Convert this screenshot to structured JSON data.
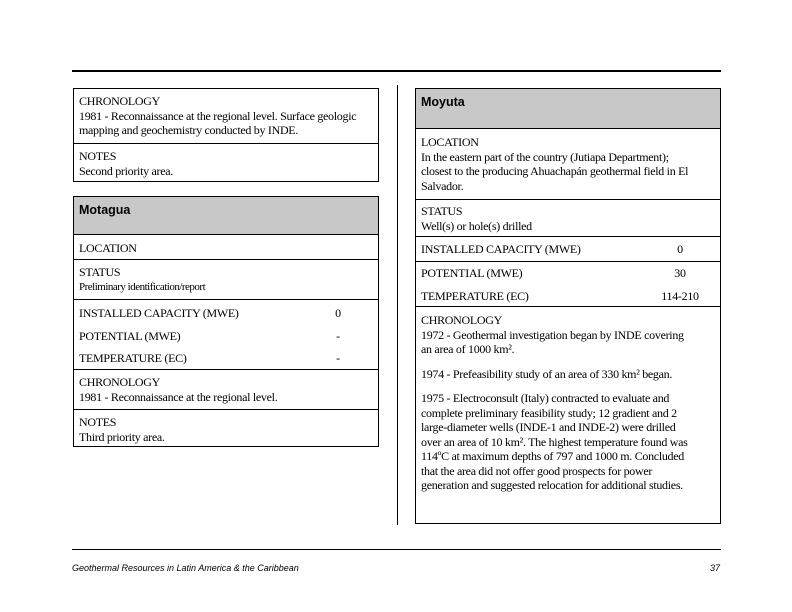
{
  "left": {
    "prev_entry": {
      "chronology_label": "CHRONOLOGY",
      "chronology_text": "1981 - Reconnaissance at the regional level.  Surface geologic mapping and geochemistry conducted by INDE.",
      "notes_label": "NOTES",
      "notes_text": "Second priority area."
    },
    "motagua": {
      "title": "Motagua",
      "location_label": "LOCATION",
      "status_label": "STATUS",
      "status_text": "Preliminary identification/report",
      "installed_label": "INSTALLED CAPACITY (MWE)",
      "installed_value": "0",
      "potential_label": "POTENTIAL (MWE)",
      "potential_value": "-",
      "temperature_label": "TEMPERATURE (ЕC)",
      "temperature_value": "-",
      "chronology_label": "CHRONOLOGY",
      "chronology_text": "1981 - Reconnaissance at the regional level.",
      "notes_label": "NOTES",
      "notes_text": "Third priority area."
    }
  },
  "right": {
    "moyuta": {
      "title": "Moyuta",
      "location_label": "LOCATION",
      "location_text": "In the eastern part of the country (Jutiapa Department); closest to the producing Ahuachapán geothermal field in El Salvador.",
      "status_label": "STATUS",
      "status_text": "Well(s) or hole(s) drilled",
      "installed_label": "INSTALLED CAPACITY (MWE)",
      "installed_value": "0",
      "potential_label": "POTENTIAL (MWE)",
      "potential_value": "30",
      "temperature_label": "TEMPERATURE (ЕC)",
      "temperature_value": "114-210",
      "chronology_label": "CHRONOLOGY",
      "chronology": [
        "1972 - Geothermal investigation began by INDE covering an area of 1000 km².",
        "1974 - Prefeasibility study of an area of 330 km² began.",
        "1975 - Electroconsult (Italy) contracted to evaluate and complete preliminary feasibility study; 12 gradient and 2 large-diameter wells (INDE-1 and INDE-2) were drilled over an area of 10 km².  The highest temperature found was 114ºC at maximum depths of 797 and 1000 m.  Concluded that the area did not offer good prospects for power generation and suggested relocation for additional studies."
      ]
    }
  },
  "footer": {
    "title": "Geothermal Resources in Latin America & the Caribbean",
    "page_number": "37"
  }
}
